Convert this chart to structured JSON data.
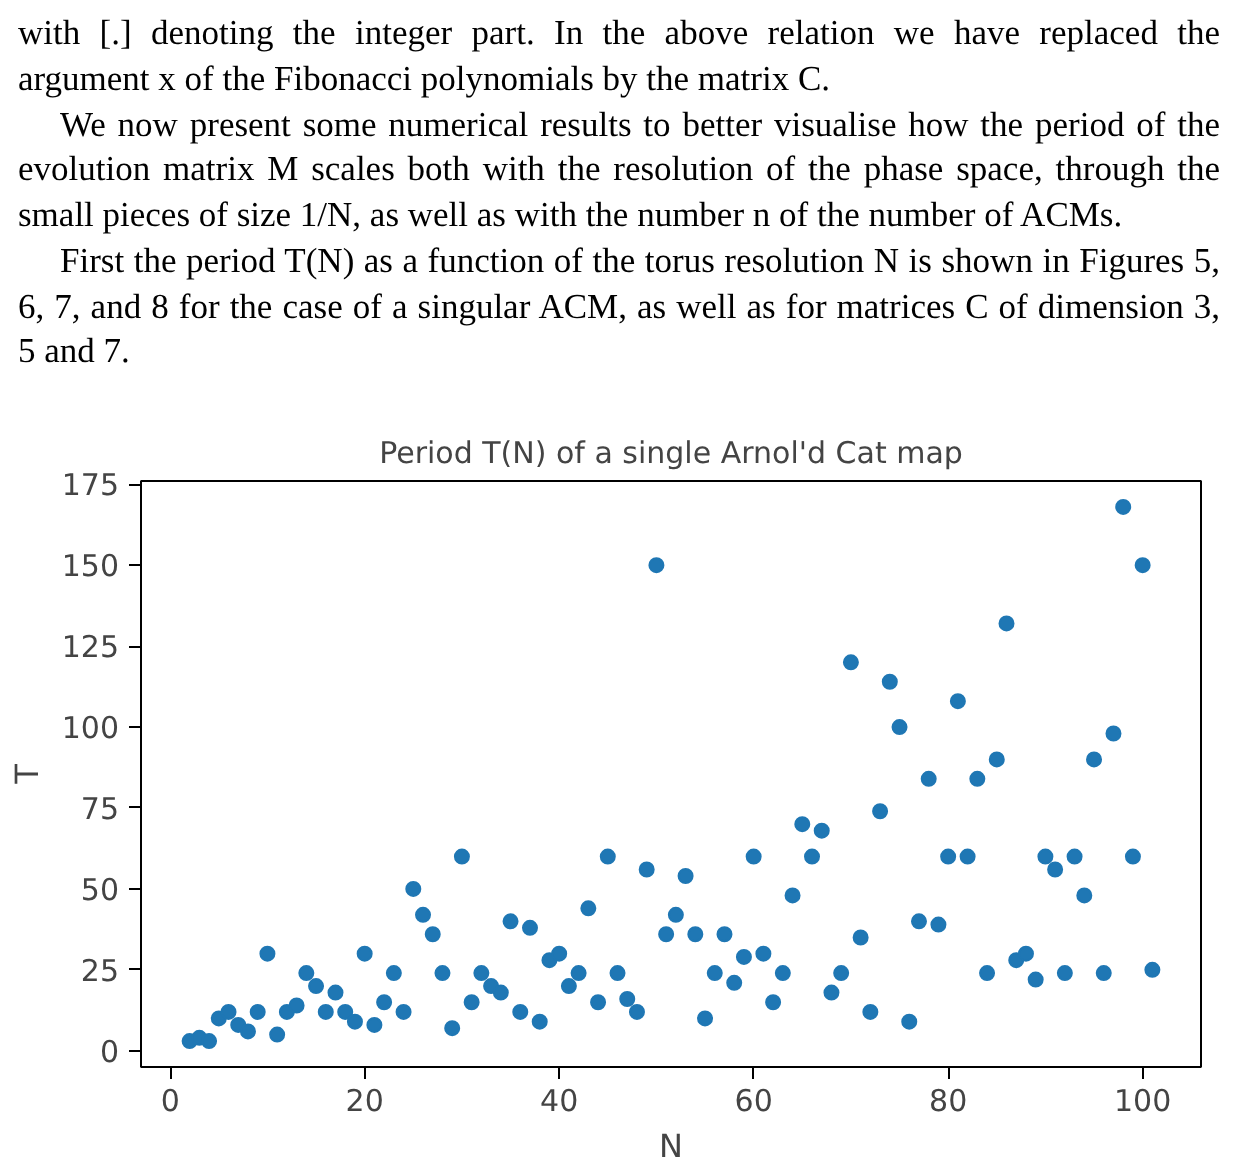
{
  "chart_data": {
    "type": "scatter",
    "title": "Period T(N) of a single Arnol'd Cat map",
    "xlabel": "N",
    "ylabel": "T",
    "annotations": [
      "with [.] denoting the integer part. In the above relation we have replaced the argument x of the Fibonacci polynomials by the matrix C.",
      "We now present some numerical results to better visualise how the period of the evolution matrix M scales both with the resolution of the phase space, through the small pieces of size 1/N, as well as with the number n of the number of ACMs.",
      "First the period T(N) as a function of the torus resolution N is shown in Figures 5, 6, 7, and 8 for the case of a singular ACM, as well as for matrices C of dimension 3, 5 and 7."
    ],
    "x": [
      2,
      3,
      4,
      5,
      6,
      7,
      8,
      9,
      10,
      11,
      12,
      13,
      14,
      15,
      16,
      17,
      18,
      19,
      20,
      21,
      22,
      23,
      24,
      25,
      26,
      27,
      28,
      29,
      30,
      31,
      32,
      33,
      34,
      35,
      36,
      37,
      38,
      39,
      40,
      41,
      42,
      43,
      44,
      45,
      46,
      47,
      48,
      49,
      50,
      51,
      52,
      53,
      54,
      55,
      56,
      57,
      58,
      59,
      60,
      61,
      62,
      63,
      64,
      65,
      66,
      67,
      68,
      69,
      70,
      71,
      72,
      73,
      74,
      75,
      76,
      77,
      78,
      79,
      80,
      81,
      82,
      83,
      84,
      85,
      86,
      87,
      88,
      89,
      90,
      91,
      92,
      93,
      94,
      95,
      96,
      97,
      98,
      99,
      100,
      101
    ],
    "series": [
      {
        "color": "#1f77b4",
        "values": [
          3,
          4,
          3,
          10,
          12,
          8,
          6,
          12,
          30,
          5,
          12,
          14,
          24,
          20,
          12,
          18,
          12,
          9,
          30,
          8,
          15,
          24,
          12,
          50,
          42,
          36,
          24,
          7,
          60,
          15,
          24,
          20,
          18,
          40,
          12,
          38,
          9,
          28,
          30,
          20,
          24,
          44,
          15,
          60,
          24,
          16,
          12,
          56,
          150,
          36,
          42,
          54,
          36,
          10,
          24,
          36,
          21,
          29,
          60,
          30,
          15,
          24,
          48,
          70,
          60,
          68,
          18,
          24,
          120,
          35,
          12,
          74,
          114,
          100,
          9,
          40,
          84,
          39,
          60,
          108,
          60,
          84,
          24,
          90,
          132,
          28,
          30,
          22,
          60,
          56,
          24,
          60,
          48,
          90,
          24,
          98,
          168,
          60,
          150,
          25
        ]
      }
    ],
    "xlim": [
      -3,
      106
    ],
    "ylim": [
      -5,
      176
    ],
    "xticks": [
      0,
      20,
      40,
      60,
      80,
      100
    ],
    "yticks": [
      0,
      25,
      50,
      75,
      100,
      125,
      150,
      175
    ],
    "marker": "circle",
    "grid": false
  }
}
